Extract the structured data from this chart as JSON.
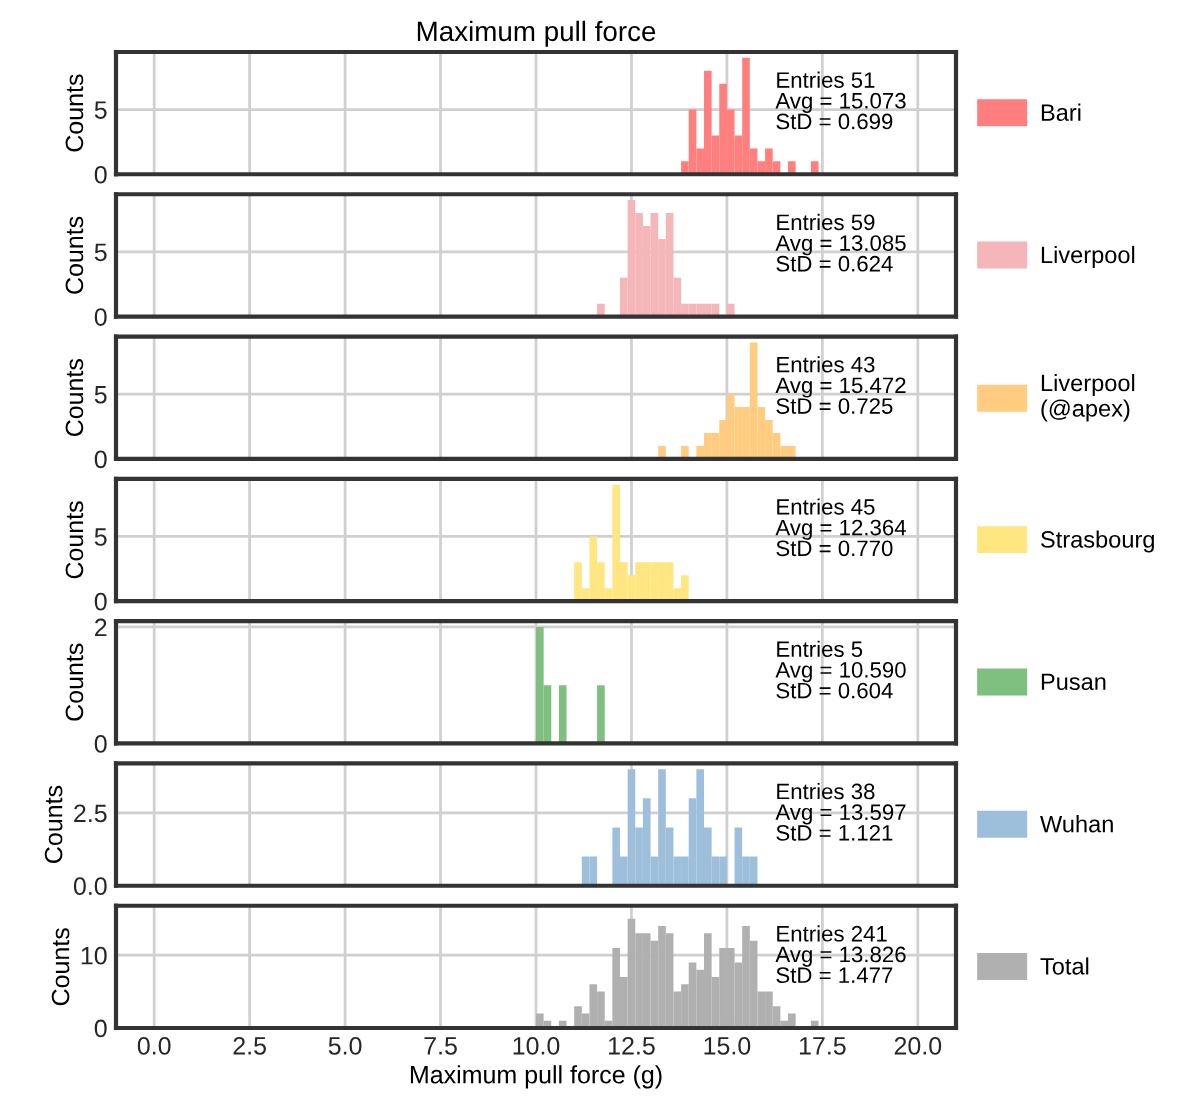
{
  "chart_data": [
    {
      "type": "histogram",
      "title": "Maximum pull force",
      "ylabel": "Counts",
      "bins": [
        10.0,
        10.2,
        10.4,
        10.6,
        10.8,
        11.0,
        11.2,
        11.4,
        11.6,
        11.8,
        12.0,
        12.2,
        12.4,
        12.6,
        12.8,
        13.0,
        13.2,
        13.4,
        13.6,
        13.8,
        14.0,
        14.2,
        14.4,
        14.6,
        14.8,
        15.0,
        15.2,
        15.4,
        15.6,
        15.8,
        16.0,
        16.2,
        16.4,
        16.6,
        16.8,
        17.0,
        17.2,
        17.4
      ],
      "series": [
        {
          "name": "Bari",
          "color": "#ff7f7f",
          "values": [
            0,
            0,
            0,
            0,
            0,
            0,
            0,
            0,
            0,
            0,
            0,
            0,
            0,
            0,
            0,
            0,
            0,
            0,
            0,
            1,
            5,
            2,
            8,
            3,
            7,
            5,
            3,
            9,
            2,
            1,
            2,
            1,
            0,
            1,
            0,
            0,
            1
          ]
        }
      ],
      "xlim": [
        -1,
        21
      ],
      "xticks": [
        {
          "value": 0,
          "label": null
        },
        {
          "value": 2.5,
          "label": null
        },
        {
          "value": 5,
          "label": null
        },
        {
          "value": 7.5,
          "label": null
        },
        {
          "value": 10,
          "label": null
        },
        {
          "value": 12.5,
          "label": null
        },
        {
          "value": 15,
          "label": null
        },
        {
          "value": 17.5,
          "label": null
        },
        {
          "value": 20,
          "label": null
        }
      ],
      "ylim": [
        0,
        9.45
      ],
      "yticks": [
        0,
        5
      ],
      "grid": true,
      "legend": "right",
      "tick_labels": "y",
      "annotations": [
        "Entries 51\nAvg = 15.073\nStD = 0.699"
      ]
    },
    {
      "type": "histogram",
      "ylabel": "Counts",
      "bins": [
        10.0,
        10.2,
        10.4,
        10.6,
        10.8,
        11.0,
        11.2,
        11.4,
        11.6,
        11.8,
        12.0,
        12.2,
        12.4,
        12.6,
        12.8,
        13.0,
        13.2,
        13.4,
        13.6,
        13.8,
        14.0,
        14.2,
        14.4,
        14.6,
        14.8,
        15.0,
        15.2,
        15.4,
        15.6,
        15.8,
        16.0,
        16.2,
        16.4,
        16.6,
        16.8,
        17.0,
        17.2,
        17.4
      ],
      "series": [
        {
          "name": "Liverpool",
          "color": "#f4b6b8",
          "values": [
            0,
            0,
            0,
            0,
            0,
            0,
            0,
            0,
            1,
            0,
            0,
            3,
            9,
            8,
            7,
            8,
            6,
            8,
            3,
            1,
            1,
            1,
            1,
            1,
            0,
            1,
            0,
            0,
            0,
            0,
            0,
            0,
            0,
            0,
            0,
            0,
            0
          ]
        }
      ],
      "xlim": [
        -1,
        21
      ],
      "xticks": [
        {
          "value": 0,
          "label": null
        },
        {
          "value": 2.5,
          "label": null
        },
        {
          "value": 5,
          "label": null
        },
        {
          "value": 7.5,
          "label": null
        },
        {
          "value": 10,
          "label": null
        },
        {
          "value": 12.5,
          "label": null
        },
        {
          "value": 15,
          "label": null
        },
        {
          "value": 17.5,
          "label": null
        },
        {
          "value": 20,
          "label": null
        }
      ],
      "ylim": [
        0,
        9.45
      ],
      "yticks": [
        0,
        5
      ],
      "grid": true,
      "legend": "right",
      "tick_labels": "y",
      "annotations": [
        "Entries 59\nAvg = 13.085\nStD = 0.624"
      ]
    },
    {
      "type": "histogram",
      "ylabel": "Counts",
      "bins": [
        10.0,
        10.2,
        10.4,
        10.6,
        10.8,
        11.0,
        11.2,
        11.4,
        11.6,
        11.8,
        12.0,
        12.2,
        12.4,
        12.6,
        12.8,
        13.0,
        13.2,
        13.4,
        13.6,
        13.8,
        14.0,
        14.2,
        14.4,
        14.6,
        14.8,
        15.0,
        15.2,
        15.4,
        15.6,
        15.8,
        16.0,
        16.2,
        16.4,
        16.6,
        16.8,
        17.0,
        17.2,
        17.4
      ],
      "series": [
        {
          "name": "Liverpool\n(@apex)",
          "color": "#ffcc80",
          "values": [
            0,
            0,
            0,
            0,
            0,
            0,
            0,
            0,
            0,
            0,
            0,
            0,
            0,
            0,
            0,
            0,
            1,
            0,
            0,
            1,
            0,
            1,
            2,
            2,
            3,
            5,
            4,
            4,
            9,
            4,
            3,
            2,
            1,
            1,
            0,
            0,
            0
          ]
        }
      ],
      "xlim": [
        -1,
        21
      ],
      "xticks": [
        {
          "value": 0,
          "label": null
        },
        {
          "value": 2.5,
          "label": null
        },
        {
          "value": 5,
          "label": null
        },
        {
          "value": 7.5,
          "label": null
        },
        {
          "value": 10,
          "label": null
        },
        {
          "value": 12.5,
          "label": null
        },
        {
          "value": 15,
          "label": null
        },
        {
          "value": 17.5,
          "label": null
        },
        {
          "value": 20,
          "label": null
        }
      ],
      "ylim": [
        0,
        9.45
      ],
      "yticks": [
        0,
        5
      ],
      "grid": true,
      "legend": "right",
      "tick_labels": "y",
      "annotations": [
        "Entries 43\nAvg = 15.472\nStD = 0.725"
      ]
    },
    {
      "type": "histogram",
      "ylabel": "Counts",
      "bins": [
        10.0,
        10.2,
        10.4,
        10.6,
        10.8,
        11.0,
        11.2,
        11.4,
        11.6,
        11.8,
        12.0,
        12.2,
        12.4,
        12.6,
        12.8,
        13.0,
        13.2,
        13.4,
        13.6,
        13.8,
        14.0,
        14.2,
        14.4,
        14.6,
        14.8,
        15.0,
        15.2,
        15.4,
        15.6,
        15.8,
        16.0,
        16.2,
        16.4,
        16.6,
        16.8,
        17.0,
        17.2,
        17.4
      ],
      "series": [
        {
          "name": "Strasbourg",
          "color": "#ffe680",
          "values": [
            0,
            0,
            0,
            0,
            0,
            3,
            1,
            5,
            3,
            1,
            9,
            3,
            2,
            3,
            3,
            3,
            3,
            3,
            1,
            2,
            0,
            0,
            0,
            0,
            0,
            0,
            0,
            0,
            0,
            0,
            0,
            0,
            0,
            0,
            0,
            0,
            0
          ]
        }
      ],
      "xlim": [
        -1,
        21
      ],
      "xticks": [
        {
          "value": 0,
          "label": null
        },
        {
          "value": 2.5,
          "label": null
        },
        {
          "value": 5,
          "label": null
        },
        {
          "value": 7.5,
          "label": null
        },
        {
          "value": 10,
          "label": null
        },
        {
          "value": 12.5,
          "label": null
        },
        {
          "value": 15,
          "label": null
        },
        {
          "value": 17.5,
          "label": null
        },
        {
          "value": 20,
          "label": null
        }
      ],
      "ylim": [
        0,
        9.45
      ],
      "yticks": [
        0,
        5
      ],
      "grid": true,
      "legend": "right",
      "tick_labels": "y",
      "annotations": [
        "Entries 45\nAvg = 12.364\nStD = 0.770"
      ]
    },
    {
      "type": "histogram",
      "ylabel": "Counts",
      "bins": [
        10.0,
        10.2,
        10.4,
        10.6,
        10.8,
        11.0,
        11.2,
        11.4,
        11.6,
        11.8,
        12.0,
        12.2,
        12.4,
        12.6,
        12.8,
        13.0,
        13.2,
        13.4,
        13.6,
        13.8,
        14.0,
        14.2,
        14.4,
        14.6,
        14.8,
        15.0,
        15.2,
        15.4,
        15.6,
        15.8,
        16.0,
        16.2,
        16.4,
        16.6,
        16.8,
        17.0,
        17.2,
        17.4
      ],
      "series": [
        {
          "name": "Pusan",
          "color": "#7fbf7f",
          "values": [
            2,
            1,
            0,
            1,
            0,
            0,
            0,
            0,
            1,
            0,
            0,
            0,
            0,
            0,
            0,
            0,
            0,
            0,
            0,
            0,
            0,
            0,
            0,
            0,
            0,
            0,
            0,
            0,
            0,
            0,
            0,
            0,
            0,
            0,
            0,
            0,
            0
          ]
        }
      ],
      "xlim": [
        -1,
        21
      ],
      "xticks": [
        {
          "value": 0,
          "label": null
        },
        {
          "value": 2.5,
          "label": null
        },
        {
          "value": 5,
          "label": null
        },
        {
          "value": 7.5,
          "label": null
        },
        {
          "value": 10,
          "label": null
        },
        {
          "value": 12.5,
          "label": null
        },
        {
          "value": 15,
          "label": null
        },
        {
          "value": 17.5,
          "label": null
        },
        {
          "value": 20,
          "label": null
        }
      ],
      "ylim": [
        0,
        2.1
      ],
      "yticks": [
        0,
        2
      ],
      "grid": true,
      "legend": "right",
      "tick_labels": "y",
      "annotations": [
        "Entries 5\nAvg = 10.590\nStD = 0.604"
      ]
    },
    {
      "type": "histogram",
      "ylabel": "Counts",
      "bins": [
        10.0,
        10.2,
        10.4,
        10.6,
        10.8,
        11.0,
        11.2,
        11.4,
        11.6,
        11.8,
        12.0,
        12.2,
        12.4,
        12.6,
        12.8,
        13.0,
        13.2,
        13.4,
        13.6,
        13.8,
        14.0,
        14.2,
        14.4,
        14.6,
        14.8,
        15.0,
        15.2,
        15.4,
        15.6,
        15.8,
        16.0,
        16.2,
        16.4,
        16.6,
        16.8,
        17.0,
        17.2,
        17.4
      ],
      "series": [
        {
          "name": "Wuhan",
          "color": "#9ebfdc",
          "values": [
            0,
            0,
            0,
            0,
            0,
            0,
            1,
            1,
            0,
            0,
            2,
            1,
            4,
            2,
            3,
            1,
            4,
            2,
            1,
            1,
            3,
            4,
            2,
            1,
            1,
            0,
            2,
            1,
            1,
            0,
            0,
            0,
            0,
            0,
            0,
            0,
            0
          ]
        }
      ],
      "xlim": [
        -1,
        21
      ],
      "xticks": [
        {
          "value": 0,
          "label": null
        },
        {
          "value": 2.5,
          "label": null
        },
        {
          "value": 5,
          "label": null
        },
        {
          "value": 7.5,
          "label": null
        },
        {
          "value": 10,
          "label": null
        },
        {
          "value": 12.5,
          "label": null
        },
        {
          "value": 15,
          "label": null
        },
        {
          "value": 17.5,
          "label": null
        },
        {
          "value": 20,
          "label": null
        }
      ],
      "ylim": [
        0,
        4.2
      ],
      "yticks": [
        {
          "value": 0,
          "label": "0.0"
        },
        {
          "value": 2.5,
          "label": "2.5"
        }
      ],
      "grid": true,
      "legend": "right",
      "tick_labels": "y",
      "annotations": [
        "Entries 38\nAvg = 13.597\nStD = 1.121"
      ]
    },
    {
      "type": "histogram",
      "ylabel": "Counts",
      "xlabel": "Maximum pull force (g)",
      "bins": [
        10.0,
        10.2,
        10.4,
        10.6,
        10.8,
        11.0,
        11.2,
        11.4,
        11.6,
        11.8,
        12.0,
        12.2,
        12.4,
        12.6,
        12.8,
        13.0,
        13.2,
        13.4,
        13.6,
        13.8,
        14.0,
        14.2,
        14.4,
        14.6,
        14.8,
        15.0,
        15.2,
        15.4,
        15.6,
        15.8,
        16.0,
        16.2,
        16.4,
        16.6,
        16.8,
        17.0,
        17.2,
        17.4
      ],
      "series": [
        {
          "name": "Total",
          "color": "#b0b0b0",
          "values": [
            2,
            1,
            0,
            1,
            0,
            3,
            2,
            6,
            5,
            1,
            11,
            7,
            15,
            13,
            13,
            12,
            14,
            13,
            5,
            6,
            9,
            8,
            13,
            7,
            11,
            11,
            9,
            14,
            12,
            5,
            5,
            3,
            1,
            2,
            0,
            0,
            1
          ]
        }
      ],
      "xlim": [
        -1,
        21
      ],
      "xticks": [
        {
          "value": 0,
          "label": "0.0"
        },
        {
          "value": 2.5,
          "label": "2.5"
        },
        {
          "value": 5,
          "label": "5.0"
        },
        {
          "value": 7.5,
          "label": "7.5"
        },
        {
          "value": 10,
          "label": "10.0"
        },
        {
          "value": 12.5,
          "label": "12.5"
        },
        {
          "value": 15,
          "label": "15.0"
        },
        {
          "value": 17.5,
          "label": "17.5"
        },
        {
          "value": 20,
          "label": "20.0"
        }
      ],
      "ylim": [
        0,
        16.8
      ],
      "yticks": [
        0,
        10
      ],
      "grid": true,
      "legend": "right",
      "annotations": [
        "Entries 241\nAvg = 13.826\nStD = 1.477"
      ]
    }
  ]
}
